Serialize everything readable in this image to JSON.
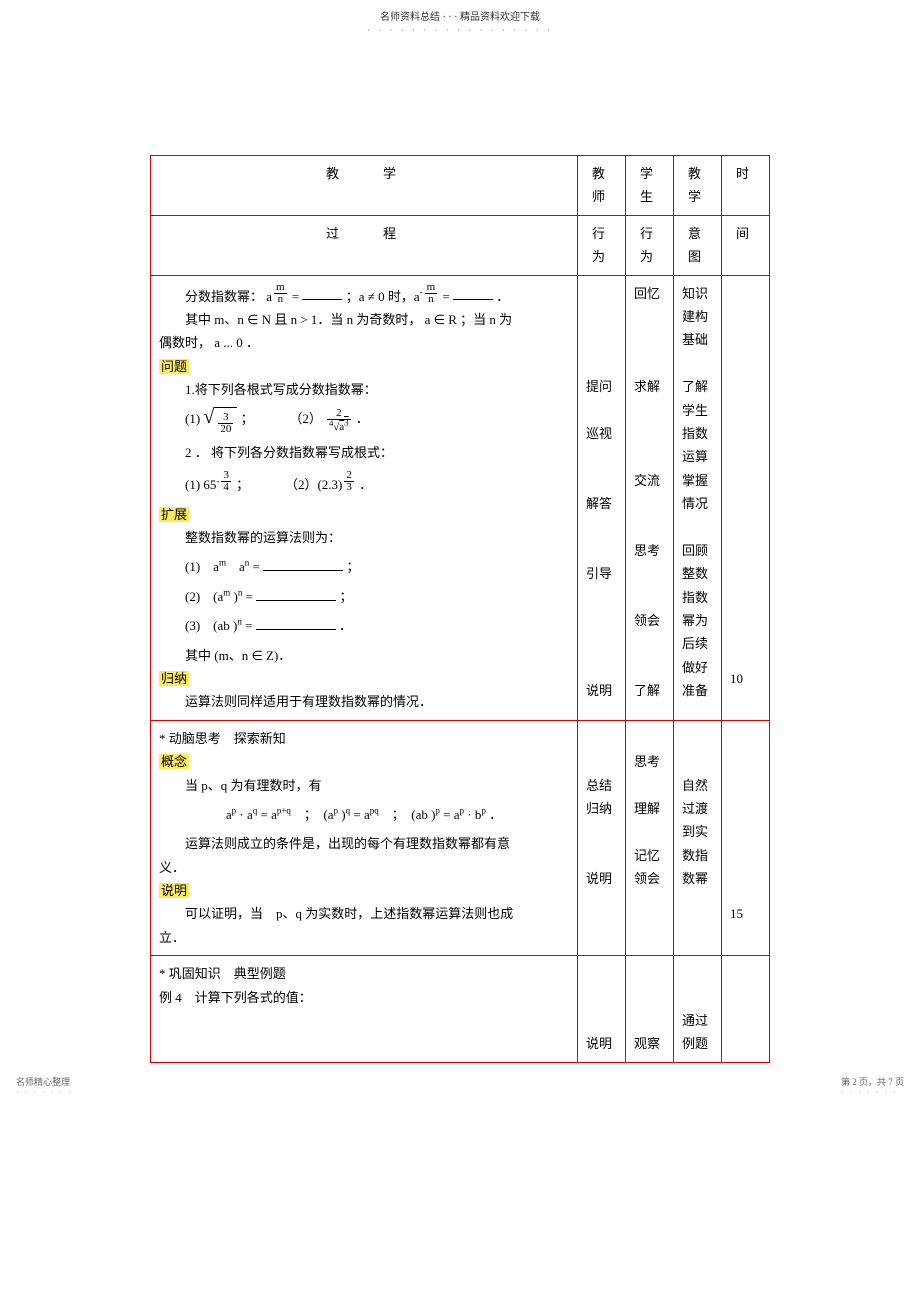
{
  "header": {
    "top_text": "名师资料总结 · · · 精品资料欢迎下载",
    "dots": "· · · · · · · · · · · · · · · · ·"
  },
  "table_header": {
    "title_row1": "教　　学",
    "title_row2": "过　　程",
    "col1_r1": "教师",
    "col1_r2": "行为",
    "col2_r1": "学生",
    "col2_r2": "行为",
    "col3_r1": "教学",
    "col3_r2": "意图",
    "col4_r1": "时",
    "col4_r2": "间"
  },
  "section1": {
    "line1_prefix": "分数指数幂：",
    "line1_mid": "；a ≠ 0 时，a",
    "line1_end": "．",
    "line2": "其中 m、n ∈ N 且 n > 1．当 n 为奇数时， a ∈ R ；当 n 为",
    "line3": "偶数时， a ... 0 ．",
    "wenti": "问题",
    "q1": "1.将下列各根式写成分数指数幂：",
    "q1_1_pre": "(1)",
    "q1_2_pre": "（2）",
    "q2": "2 ． 将下列各分数指数幂写成根式：",
    "q2_1": "(1) 65",
    "q2_2_pre": "（2）(2.3)",
    "kuozhan": "扩展",
    "ext_title": "整数指数幂的运算法则为：",
    "ext1": "(1)　a",
    "ext2": "(2)　(a",
    "ext3": "(3)　(ab )",
    "ext_note": "其中 (m、n ∈ Z)．",
    "guina": "归纳",
    "guina_text": "运算法则同样适用于有理数指数幂的情况．",
    "col_teacher": [
      "提问",
      "巡视",
      "解答",
      "引导",
      "说明"
    ],
    "col_student": [
      "回忆",
      "求解",
      "交流",
      "思考",
      "领会",
      "了解"
    ],
    "col_intent": [
      "知识",
      "建构",
      "基础",
      "了解",
      "学生",
      "指数",
      "运算",
      "掌握",
      "情况",
      "回顾",
      "整数",
      "指数",
      "幂为",
      "后续",
      "做好",
      "准备"
    ],
    "time1": "10"
  },
  "section2": {
    "title": "* 动脑思考　探索新知",
    "gainian": "概念",
    "line1": "当 p、q 为有理数时，有",
    "formula": "a",
    "line3": "运算法则成立的条件是，出现的每个有理数指数幂都有意",
    "line3b": "义．",
    "shuoming": "说明",
    "line4": "可以证明，当　p、q 为实数时，上述指数幂运算法则也成",
    "line5": "立．",
    "col_teacher": [
      "总结",
      "归纳",
      "说明"
    ],
    "col_student": [
      "思考",
      "理解",
      "记忆",
      "领会"
    ],
    "col_intent": [
      "自然",
      "过渡",
      "到实",
      "数指",
      "数幂"
    ],
    "time": "15"
  },
  "section3": {
    "title": "* 巩固知识　典型例题",
    "ex4": "例 4　计算下列各式的值：",
    "col_teacher": [
      "说明"
    ],
    "col_student": [
      "观察"
    ],
    "col_intent": [
      "通过",
      "例题"
    ]
  },
  "footer": {
    "left": "名师精心整理",
    "right": "第 2 页，共 7 页",
    "dots": "· · · · · · ·"
  }
}
